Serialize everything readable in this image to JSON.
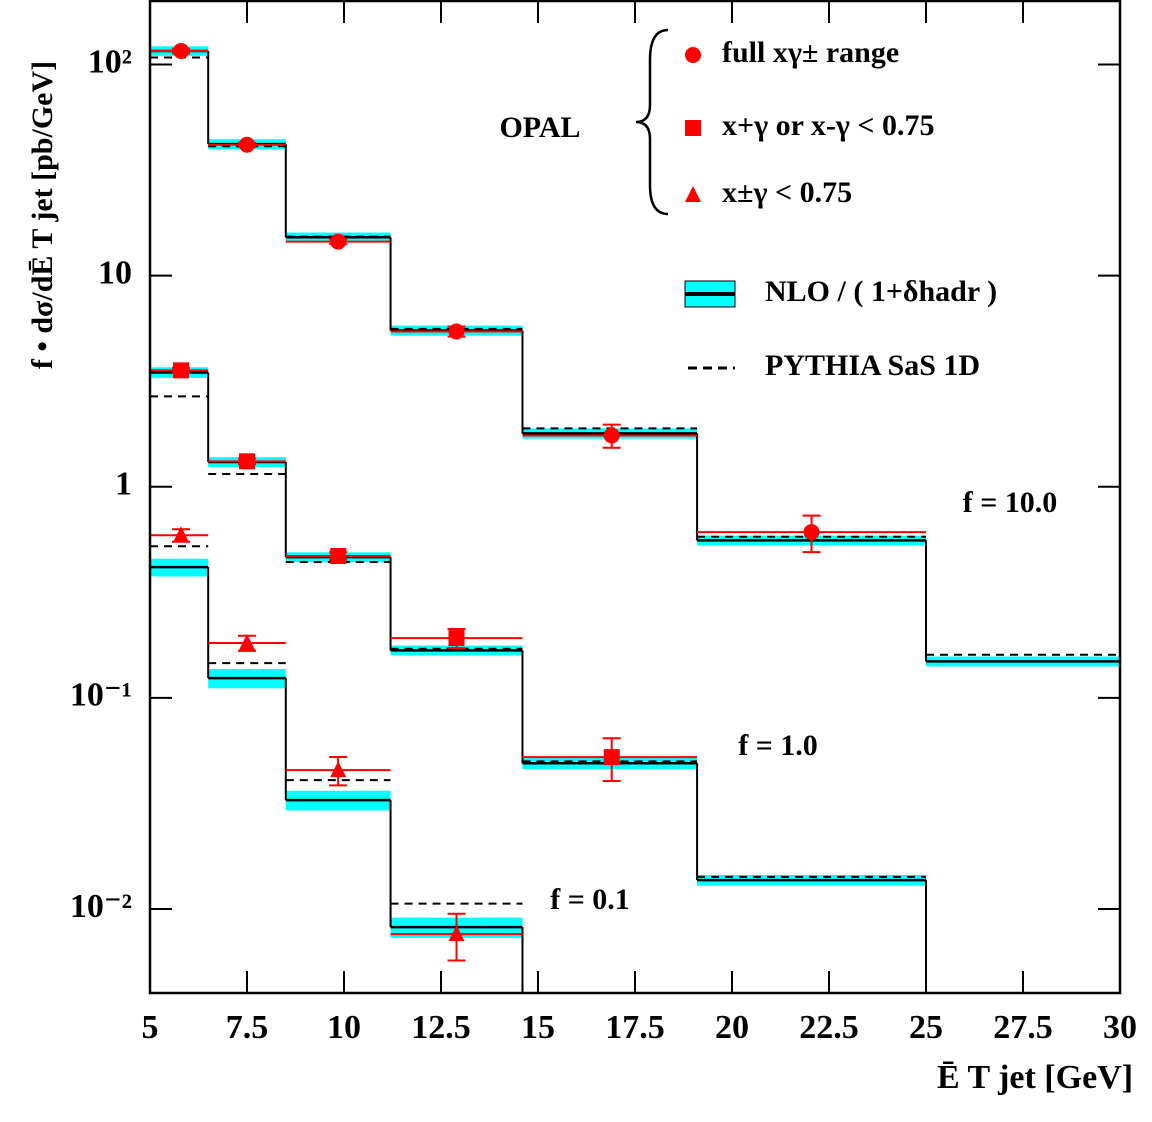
{
  "chart_data": {
    "type": "step-log",
    "x_label": "Ē T jet [GeV]",
    "y_label": "f • dσ/dĒ T jet  [pb/GeV]",
    "experiment": "OPAL",
    "xlim": [
      5,
      30
    ],
    "xticks": [
      5,
      7.5,
      10,
      12.5,
      15,
      17.5,
      20,
      22.5,
      25,
      27.5,
      30
    ],
    "ylim": [
      0.004,
      200
    ],
    "ylog": true,
    "yticks": [
      {
        "value": 0.01,
        "label": "10⁻²"
      },
      {
        "value": 0.1,
        "label": "10⁻¹"
      },
      1,
      10,
      {
        "value": 100,
        "label": "10²"
      }
    ],
    "bins": [
      5,
      6.5,
      8.5,
      11.2,
      14.6,
      19.1,
      25,
      30
    ],
    "scale_labels": [
      "f = 10.0",
      "f = 1.0",
      "f = 0.1"
    ],
    "series": [
      {
        "name": "full xγ± range",
        "marker": "circle",
        "color": "#ff0000",
        "x": [
          5.8,
          7.5,
          9.85,
          12.9,
          16.9,
          22.05
        ],
        "values": [
          116,
          41.7,
          14.5,
          5.44,
          1.75,
          0.61
        ],
        "errors": [
          3,
          1,
          0.4,
          0.3,
          0.22,
          0.12
        ]
      },
      {
        "name": "x+γ or x-γ < 0.75",
        "marker": "square",
        "color": "#ff0000",
        "x": [
          5.8,
          7.5,
          9.85,
          12.9,
          16.9
        ],
        "values": [
          3.56,
          1.32,
          0.47,
          0.192,
          0.0524
        ],
        "errors": [
          0.1,
          0.04,
          0.02,
          0.02,
          0.012
        ]
      },
      {
        "name": "x±γ < 0.75",
        "marker": "triangle",
        "color": "#ff0000",
        "x": [
          5.8,
          7.5,
          9.85,
          12.9
        ],
        "values": [
          0.589,
          0.182,
          0.0455,
          0.0076
        ],
        "errors": [
          0.04,
          0.015,
          0.007,
          0.0019
        ]
      }
    ],
    "nlo": {
      "name": "NLO / ( 1+δhadr )",
      "color": "#000000",
      "band_color": "#00ffff",
      "sets": [
        {
          "values": [
            116,
            42,
            15.2,
            5.5,
            1.79,
            0.557,
            0.149
          ],
          "errors": [
            6,
            2.3,
            0.8,
            0.3,
            0.1,
            0.03,
            0.008
          ]
        },
        {
          "values": [
            3.48,
            1.31,
            0.464,
            0.168,
            0.049,
            0.0137,
            null
          ],
          "errors": [
            0.2,
            0.07,
            0.025,
            0.009,
            0.003,
            0.0008,
            null
          ]
        },
        {
          "values": [
            0.416,
            0.124,
            0.0328,
            0.0082,
            null,
            null,
            null
          ],
          "errors": [
            0.04,
            0.013,
            0.0035,
            0.0009,
            null,
            null,
            null
          ]
        }
      ]
    },
    "pythia": {
      "name": "PYTHIA SaS 1D",
      "color": "#000000",
      "sets": [
        [
          108,
          41,
          15.3,
          5.6,
          1.89,
          0.58,
          0.16
        ],
        [
          2.68,
          1.15,
          0.44,
          0.171,
          0.05,
          0.0142,
          null
        ],
        [
          0.523,
          0.146,
          0.0408,
          0.0106,
          null,
          null,
          null
        ]
      ]
    }
  }
}
